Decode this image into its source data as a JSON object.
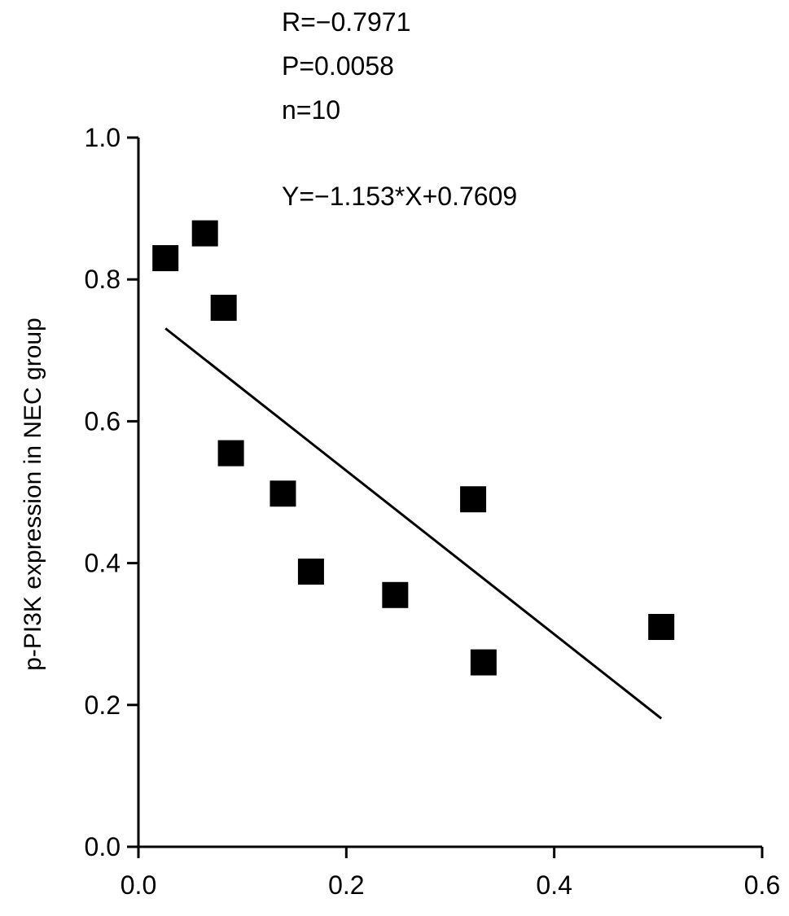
{
  "chart_data": {
    "type": "scatter",
    "title": "",
    "xlabel": "",
    "ylabel": "p-PI3K expression in NEC group",
    "xlim": [
      0,
      0.6
    ],
    "ylim": [
      0,
      1.0
    ],
    "x_ticks": [
      "0.0",
      "0.2",
      "0.4",
      "0.6"
    ],
    "y_ticks": [
      "0.0",
      "0.2",
      "0.4",
      "0.6",
      "0.8",
      "1.0"
    ],
    "grid": false,
    "legend": "none",
    "marker": "square",
    "marker_color": "#000000",
    "points": [
      {
        "x": 0.026,
        "y": 0.83
      },
      {
        "x": 0.064,
        "y": 0.865
      },
      {
        "x": 0.082,
        "y": 0.76
      },
      {
        "x": 0.089,
        "y": 0.555
      },
      {
        "x": 0.139,
        "y": 0.498
      },
      {
        "x": 0.166,
        "y": 0.388
      },
      {
        "x": 0.247,
        "y": 0.355
      },
      {
        "x": 0.322,
        "y": 0.49
      },
      {
        "x": 0.332,
        "y": 0.26
      },
      {
        "x": 0.503,
        "y": 0.31
      }
    ],
    "fit_line": {
      "slope": -1.153,
      "intercept": 0.7609,
      "x_start": 0.026,
      "x_end": 0.503
    },
    "annotations": {
      "r": "R=−0.7971",
      "p": "P=0.0058",
      "n": "n=10",
      "equation": "Y=−1.153*X+0.7609"
    }
  }
}
